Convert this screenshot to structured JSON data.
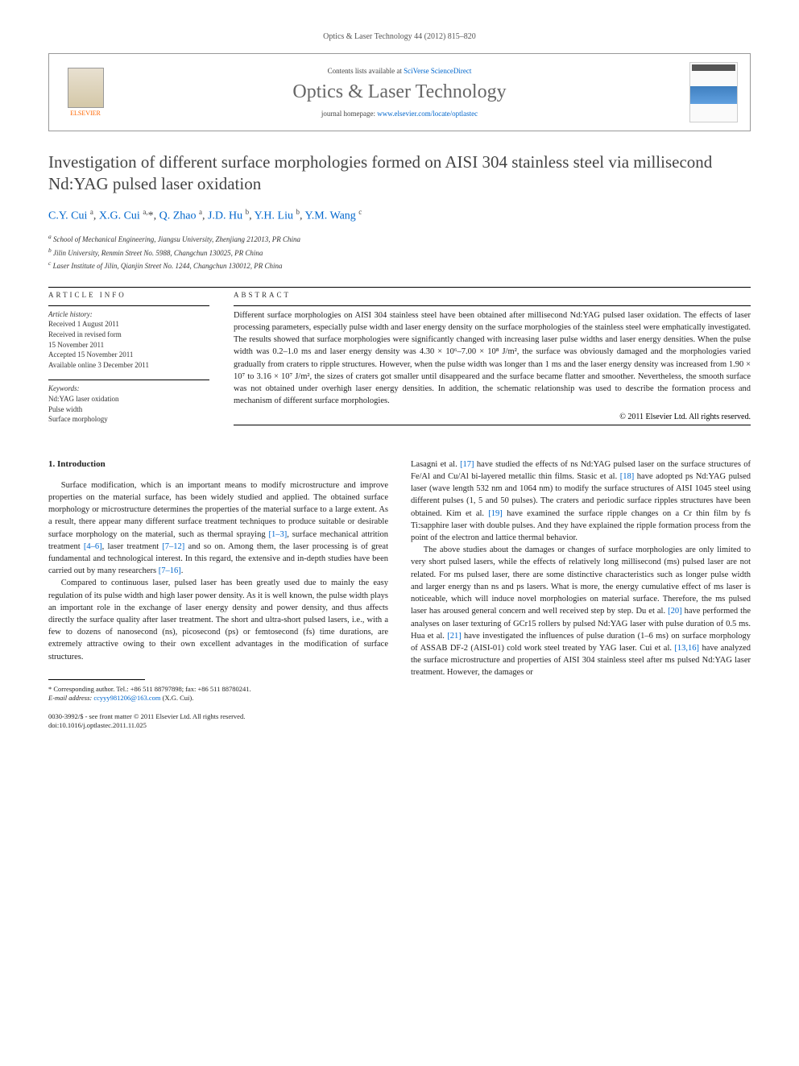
{
  "journal_header": "Optics & Laser Technology 44 (2012) 815–820",
  "elsevier_label": "ELSEVIER",
  "contents_prefix": "Contents lists available at ",
  "contents_link": "SciVerse ScienceDirect",
  "journal_title": "Optics & Laser Technology",
  "homepage_prefix": "journal homepage: ",
  "homepage_link": "www.elsevier.com/locate/optlastec",
  "article_title": "Investigation of different surface morphologies formed on AISI 304 stainless steel via millisecond Nd:YAG pulsed laser oxidation",
  "authors_html": "C.Y. Cui <sup>a</sup>, X.G. Cui <sup>a,*</sup>, Q. Zhao <sup>a</sup>, J.D. Hu <sup>b</sup>, Y.H. Liu <sup>b</sup>, Y.M. Wang <sup>c</sup>",
  "affiliations": {
    "a": "School of Mechanical Engineering, Jiangsu University, Zhenjiang 212013, PR China",
    "b": "Jilin University, Renmin Street No. 5988, Changchun 130025, PR China",
    "c": "Laser Institute of Jilin, Qianjin Street No. 1244, Changchun 130012, PR China"
  },
  "article_info_label": "ARTICLE INFO",
  "abstract_label": "ABSTRACT",
  "history_label": "Article history:",
  "history": {
    "received": "Received 1 August 2011",
    "revised1": "Received in revised form",
    "revised2": "15 November 2011",
    "accepted": "Accepted 15 November 2011",
    "online": "Available online 3 December 2011"
  },
  "keywords_label": "Keywords:",
  "keywords": [
    "Nd:YAG laser oxidation",
    "Pulse width",
    "Surface morphology"
  ],
  "abstract_text": "Different surface morphologies on AISI 304 stainless steel have been obtained after millisecond Nd:YAG pulsed laser oxidation. The effects of laser processing parameters, especially pulse width and laser energy density on the surface morphologies of the stainless steel were emphatically investigated. The results showed that surface morphologies were significantly changed with increasing laser pulse widths and laser energy densities. When the pulse width was 0.2–1.0 ms and laser energy density was 4.30 × 10⁶–7.00 × 10⁸ J/m², the surface was obviously damaged and the morphologies varied gradually from craters to ripple structures. However, when the pulse width was longer than 1 ms and the laser energy density was increased from 1.90 × 10⁷ to 3.16 × 10⁷ J/m², the sizes of craters got smaller until disappeared and the surface became flatter and smoother. Nevertheless, the smooth surface was not obtained under overhigh laser energy densities. In addition, the schematic relationship was used to describe the formation process and mechanism of different surface morphologies.",
  "abstract_copyright": "© 2011 Elsevier Ltd. All rights reserved.",
  "intro_heading": "1. Introduction",
  "intro_p1": "Surface modification, which is an important means to modify microstructure and improve properties on the material surface, has been widely studied and applied. The obtained surface morphology or microstructure determines the properties of the material surface to a large extent. As a result, there appear many different surface treatment techniques to produce suitable or desirable surface morphology on the material, such as thermal spraying [1–3], surface mechanical attrition treatment [4–6], laser treatment [7–12] and so on. Among them, the laser processing is of great fundamental and technological interest. In this regard, the extensive and in-depth studies have been carried out by many researchers [7–16].",
  "intro_p2": "Compared to continuous laser, pulsed laser has been greatly used due to mainly the easy regulation of its pulse width and high laser power density. As it is well known, the pulse width plays an important role in the exchange of laser energy density and power density, and thus affects directly the surface quality after laser treatment. The short and ultra-short pulsed lasers, i.e., with a few to dozens of nanosecond (ns), picosecond (ps) or femtosecond (fs) time durations, are extremely attractive owing to their own excellent advantages in the modification of surface structures.",
  "intro_p3": "Lasagni et al. [17] have studied the effects of ns Nd:YAG pulsed laser on the surface structures of Fe/Al and Cu/Al bi-layered metallic thin films. Stasic et al. [18] have adopted ps Nd:YAG pulsed laser (wave length 532 nm and 1064 nm) to modify the surface structures of AISI 1045 steel using different pulses (1, 5 and 50 pulses). The craters and periodic surface ripples structures have been obtained. Kim et al. [19] have examined the surface ripple changes on a Cr thin film by fs Ti:sapphire laser with double pulses. And they have explained the ripple formation process from the point of the electron and lattice thermal behavior.",
  "intro_p4": "The above studies about the damages or changes of surface morphologies are only limited to very short pulsed lasers, while the effects of relatively long millisecond (ms) pulsed laser are not related. For ms pulsed laser, there are some distinctive characteristics such as longer pulse width and larger energy than ns and ps lasers. What is more, the energy cumulative effect of ms laser is noticeable, which will induce novel morphologies on material surface. Therefore, the ms pulsed laser has aroused general concern and well received step by step. Du et al. [20] have performed the analyses on laser texturing of GCr15 rollers by pulsed Nd:YAG laser with pulse duration of 0.5 ms. Hua et al. [21] have investigated the influences of pulse duration (1–6 ms) on surface morphology of ASSAB DF-2 (AISI-01) cold work steel treated by YAG laser. Cui et al. [13,16] have analyzed the surface microstructure and properties of AISI 304 stainless steel after ms pulsed Nd:YAG laser treatment. However, the damages or",
  "corr_author": "* Corresponding author. Tel.: +86 511 88797898; fax: +86 511 88780241.",
  "email_label": "E-mail address:",
  "email": "ccyyy981206@163.com",
  "email_suffix": "(X.G. Cui).",
  "issn_line": "0030-3992/$ - see front matter © 2011 Elsevier Ltd. All rights reserved.",
  "doi_line": "doi:10.1016/j.optlastec.2011.11.025",
  "refs": {
    "r1_3": "[1–3]",
    "r4_6": "[4–6]",
    "r7_12": "[7–12]",
    "r7_16": "[7–16]",
    "r17": "[17]",
    "r18": "[18]",
    "r19": "[19]",
    "r20": "[20]",
    "r21": "[21]",
    "r13_16": "[13,16]"
  }
}
